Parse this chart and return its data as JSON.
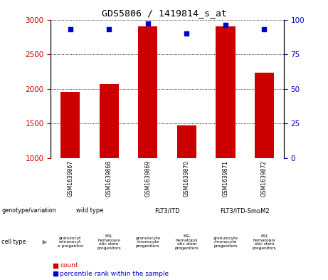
{
  "title": "GDS5806 / 1419814_s_at",
  "samples": [
    "GSM1639867",
    "GSM1639868",
    "GSM1639869",
    "GSM1639870",
    "GSM1639871",
    "GSM1639872"
  ],
  "count_values": [
    1960,
    2070,
    2900,
    1470,
    2900,
    2230
  ],
  "percentile_values": [
    93,
    93,
    97,
    90,
    96,
    93
  ],
  "ylim_left": [
    1000,
    3000
  ],
  "ylim_right": [
    0,
    100
  ],
  "yticks_left": [
    1000,
    1500,
    2000,
    2500,
    3000
  ],
  "yticks_right": [
    0,
    25,
    50,
    75,
    100
  ],
  "bar_color": "#cc0000",
  "dot_color": "#0000cc",
  "genotype_spans": [
    [
      0,
      2,
      "wild type",
      "#aaeaaa"
    ],
    [
      2,
      4,
      "FLT3/ITD",
      "#44dd44"
    ],
    [
      4,
      6,
      "FLT3/ITD-SmoM2",
      "#66cc66"
    ]
  ],
  "cell_type_short": [
    "granulocyt\ne/monocyt\ne progenitor",
    "KSL\nhematopoi\netic stem\nprogenitors",
    "granulocyte\n/monocyte\nprogenitors",
    "KSL\nhematopoi\netic stem\nprogenitors",
    "granulocyte\n/monocyte\nprogenitors",
    "KSL\nhematopoi\netic stem\nprogenitors"
  ],
  "cell_colors": [
    "#dd88dd",
    "#ee44ee",
    "#dd88dd",
    "#ee44ee",
    "#dd88dd",
    "#ee44ee"
  ],
  "left_label_color": "#cc0000",
  "right_label_color": "#0000cc",
  "sample_bg": "#c8c8c8"
}
